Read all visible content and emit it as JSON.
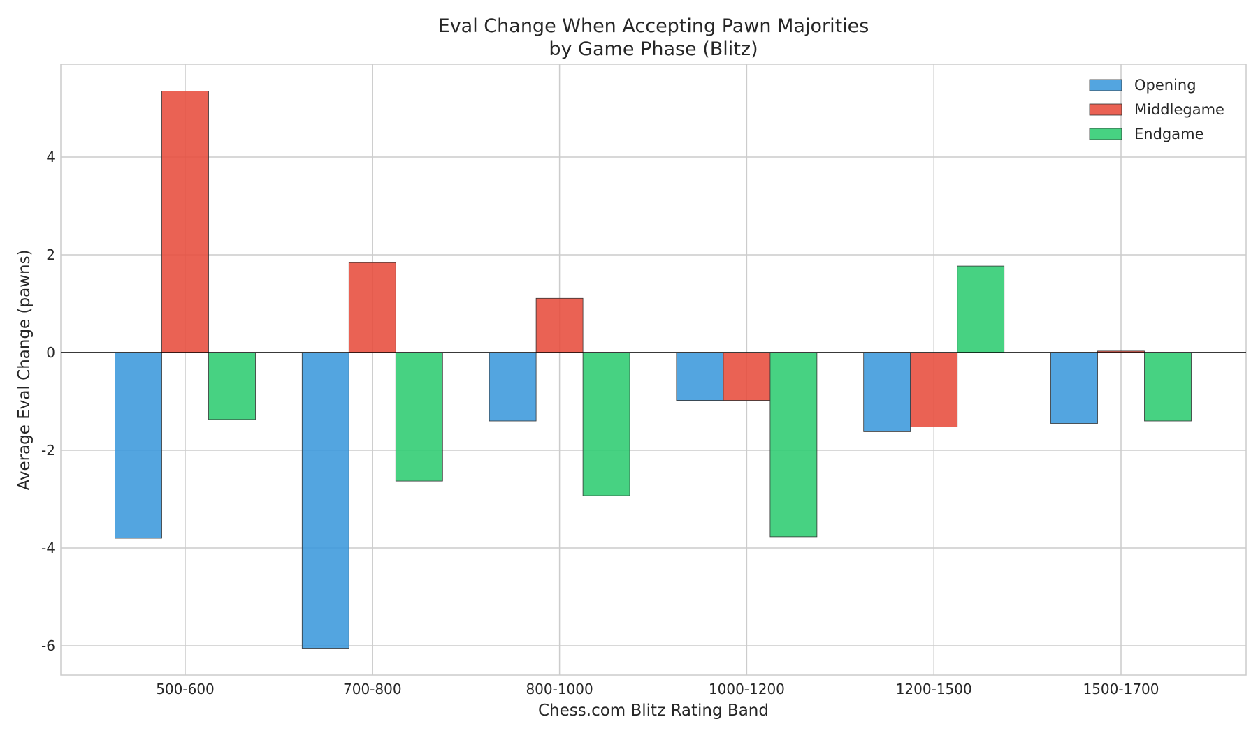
{
  "chart_data": {
    "type": "bar",
    "title_line1": "Eval Change When Accepting Pawn Majorities",
    "title_line2": "by Game Phase (Blitz)",
    "xlabel": "Chess.com Blitz Rating Band",
    "ylabel": "Average Eval Change (pawns)",
    "categories": [
      "500-600",
      "700-800",
      "800-1000",
      "1000-1200",
      "1200-1500",
      "1500-1700"
    ],
    "ylim": [
      -6.6,
      5.9
    ],
    "yticks": [
      -6,
      -4,
      -2,
      0,
      2,
      4
    ],
    "grid": true,
    "legend_position": "top-right",
    "series": [
      {
        "name": "Opening",
        "color": "#3b98dc",
        "values": [
          -3.8,
          -6.05,
          -1.4,
          -0.98,
          -1.62,
          -1.45
        ]
      },
      {
        "name": "Middlegame",
        "color": "#e74c3c",
        "values": [
          5.35,
          1.84,
          1.11,
          -0.98,
          -1.52,
          0.03
        ]
      },
      {
        "name": "Endgame",
        "color": "#2ecc71",
        "values": [
          -1.37,
          -2.63,
          -2.93,
          -3.77,
          1.77,
          -1.4
        ]
      }
    ]
  }
}
